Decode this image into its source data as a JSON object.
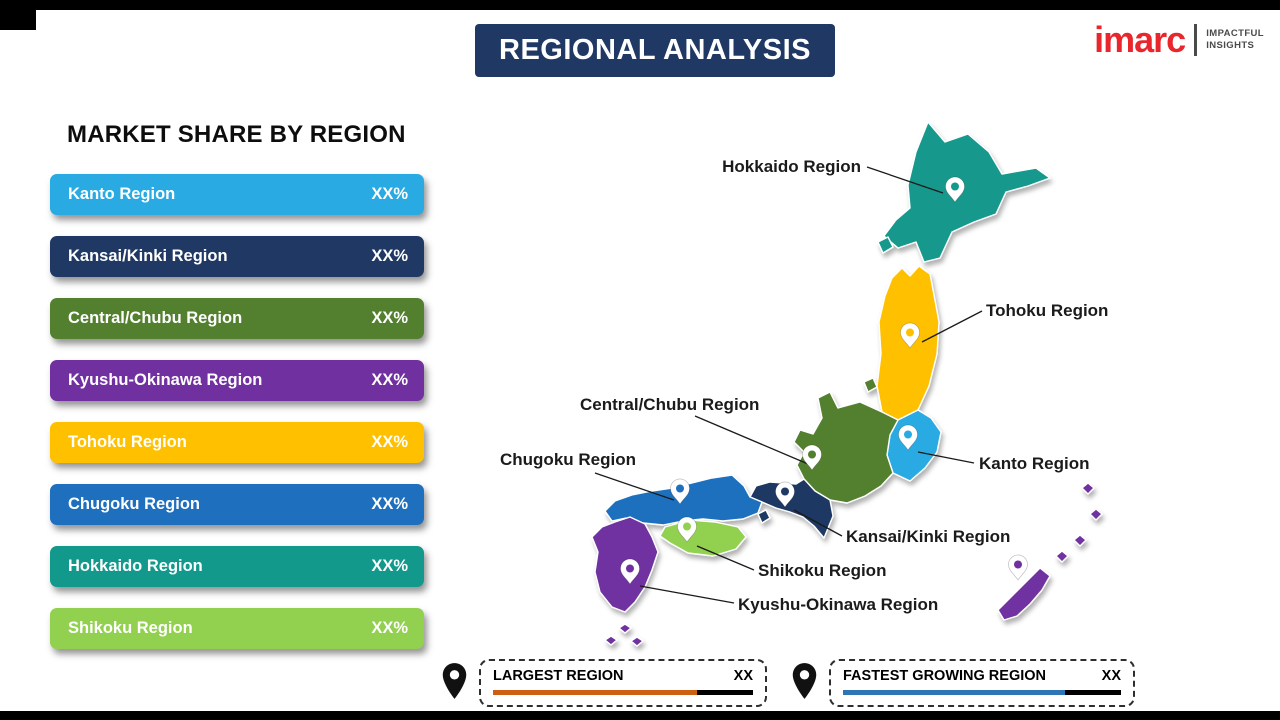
{
  "page": {
    "title": "REGIONAL ANALYSIS"
  },
  "logo": {
    "brand": "imarc",
    "tagline_line1": "IMPACTFUL",
    "tagline_line2": "INSIGHTS"
  },
  "colors": {
    "title_bg": "#1f3864",
    "brand_red": "#e8262c"
  },
  "market_share": {
    "heading": "MARKET SHARE BY REGION",
    "items": [
      {
        "label": "Kanto Region",
        "value": "XX%",
        "color": "#29aae3"
      },
      {
        "label": "Kansai/Kinki Region",
        "value": "XX%",
        "color": "#1f3864"
      },
      {
        "label": "Central/Chubu Region",
        "value": "XX%",
        "color": "#53802e"
      },
      {
        "label": "Kyushu-Okinawa Region",
        "value": "XX%",
        "color": "#7030a0"
      },
      {
        "label": "Tohoku Region",
        "value": "XX%",
        "color": "#ffc000"
      },
      {
        "label": "Chugoku Region",
        "value": "XX%",
        "color": "#1e6fbe"
      },
      {
        "label": "Hokkaido Region",
        "value": "XX%",
        "color": "#12998c"
      },
      {
        "label": "Shikoku Region",
        "value": "XX%",
        "color": "#92d050"
      }
    ]
  },
  "map": {
    "regions": [
      {
        "id": "hokkaido",
        "label": "Hokkaido Region",
        "color": "#12998c"
      },
      {
        "id": "tohoku",
        "label": "Tohoku Region",
        "color": "#ffc000"
      },
      {
        "id": "kanto",
        "label": "Kanto Region",
        "color": "#29aae3"
      },
      {
        "id": "chubu",
        "label": "Central/Chubu Region",
        "color": "#53802e"
      },
      {
        "id": "kansai",
        "label": "Kansai/Kinki Region",
        "color": "#1f3864"
      },
      {
        "id": "chugoku",
        "label": "Chugoku Region",
        "color": "#1e6fbe"
      },
      {
        "id": "shikoku",
        "label": "Shikoku Region",
        "color": "#92d050"
      },
      {
        "id": "kyushu_okinawa",
        "label": "Kyushu-Okinawa Region",
        "color": "#7030a0"
      }
    ]
  },
  "legend": {
    "largest": {
      "label": "LARGEST REGION",
      "value": "XX",
      "bar_color": "#cc5f14"
    },
    "fastest": {
      "label": "FASTEST GROWING REGION",
      "value": "XX",
      "bar_color": "#2e75b6"
    }
  }
}
